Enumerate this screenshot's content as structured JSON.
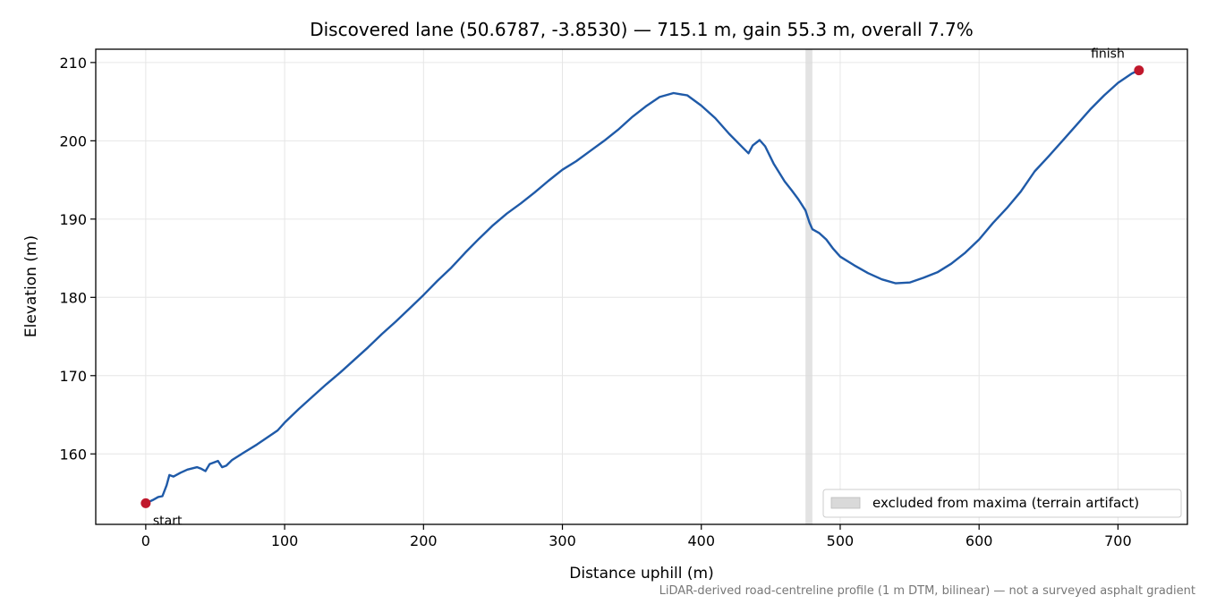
{
  "chart_data": {
    "type": "line",
    "title": "Discovered lane (50.6787, -3.8530) — 715.1 m, gain 55.3 m, overall 7.7%",
    "xlabel": "Distance uphill (m)",
    "ylabel": "Elevation (m)",
    "xlim": [
      -36,
      750
    ],
    "ylim": [
      151,
      211.7
    ],
    "xticks": [
      0,
      100,
      200,
      300,
      400,
      500,
      600,
      700
    ],
    "yticks": [
      160,
      170,
      180,
      190,
      200,
      210
    ],
    "grid": true,
    "legend_position": "bottom-right",
    "series": [
      {
        "color": "#1f5aa8",
        "points": [
          [
            0,
            153.7
          ],
          [
            5,
            154.1
          ],
          [
            9,
            154.5
          ],
          [
            12,
            154.6
          ],
          [
            15,
            156.0
          ],
          [
            17,
            157.3
          ],
          [
            20,
            157.1
          ],
          [
            25,
            157.6
          ],
          [
            30,
            158.0
          ],
          [
            37,
            158.3
          ],
          [
            40,
            158.1
          ],
          [
            43,
            157.8
          ],
          [
            46,
            158.7
          ],
          [
            52,
            159.1
          ],
          [
            55,
            158.3
          ],
          [
            58,
            158.5
          ],
          [
            62,
            159.2
          ],
          [
            70,
            160.1
          ],
          [
            80,
            161.2
          ],
          [
            90,
            162.4
          ],
          [
            95,
            163.0
          ],
          [
            100,
            164.0
          ],
          [
            110,
            165.7
          ],
          [
            120,
            167.3
          ],
          [
            130,
            168.9
          ],
          [
            140,
            170.4
          ],
          [
            150,
            172.0
          ],
          [
            160,
            173.6
          ],
          [
            170,
            175.3
          ],
          [
            180,
            176.9
          ],
          [
            190,
            178.6
          ],
          [
            200,
            180.3
          ],
          [
            210,
            182.1
          ],
          [
            220,
            183.8
          ],
          [
            230,
            185.7
          ],
          [
            240,
            187.5
          ],
          [
            250,
            189.2
          ],
          [
            260,
            190.7
          ],
          [
            270,
            192.0
          ],
          [
            280,
            193.4
          ],
          [
            290,
            194.9
          ],
          [
            300,
            196.3
          ],
          [
            310,
            197.4
          ],
          [
            320,
            198.7
          ],
          [
            330,
            200.0
          ],
          [
            340,
            201.4
          ],
          [
            350,
            203.0
          ],
          [
            360,
            204.4
          ],
          [
            370,
            205.6
          ],
          [
            380,
            206.1
          ],
          [
            390,
            205.8
          ],
          [
            400,
            204.5
          ],
          [
            410,
            202.9
          ],
          [
            420,
            200.9
          ],
          [
            430,
            199.1
          ],
          [
            434,
            198.4
          ],
          [
            437,
            199.4
          ],
          [
            442,
            200.1
          ],
          [
            446,
            199.3
          ],
          [
            452,
            197.1
          ],
          [
            460,
            194.8
          ],
          [
            465,
            193.7
          ],
          [
            470,
            192.5
          ],
          [
            475,
            191.1
          ],
          [
            478,
            189.5
          ],
          [
            480,
            188.7
          ],
          [
            485,
            188.2
          ],
          [
            490,
            187.4
          ],
          [
            495,
            186.2
          ],
          [
            500,
            185.2
          ],
          [
            510,
            184.1
          ],
          [
            520,
            183.1
          ],
          [
            530,
            182.3
          ],
          [
            540,
            181.8
          ],
          [
            550,
            181.9
          ],
          [
            560,
            182.5
          ],
          [
            570,
            183.2
          ],
          [
            580,
            184.3
          ],
          [
            590,
            185.7
          ],
          [
            600,
            187.4
          ],
          [
            610,
            189.5
          ],
          [
            620,
            191.4
          ],
          [
            630,
            193.5
          ],
          [
            640,
            196.1
          ],
          [
            650,
            198.0
          ],
          [
            660,
            200.0
          ],
          [
            670,
            202.0
          ],
          [
            680,
            204.0
          ],
          [
            690,
            205.8
          ],
          [
            700,
            207.4
          ],
          [
            710,
            208.6
          ],
          [
            715,
            209.0
          ]
        ]
      }
    ],
    "markers": [
      {
        "label": "start",
        "x": 0,
        "y": 153.7,
        "color": "#c0182c"
      },
      {
        "label": "finish",
        "x": 715.1,
        "y": 209.0,
        "color": "#c0182c"
      }
    ],
    "excluded_band": {
      "x0": 475,
      "x1": 480,
      "color": "#d9d9d9"
    },
    "legend": {
      "entries": [
        "excluded from maxima (terrain artifact)"
      ]
    },
    "footnote": "LiDAR-derived road-centreline profile (1 m DTM, bilinear) — not a surveyed asphalt gradient"
  }
}
